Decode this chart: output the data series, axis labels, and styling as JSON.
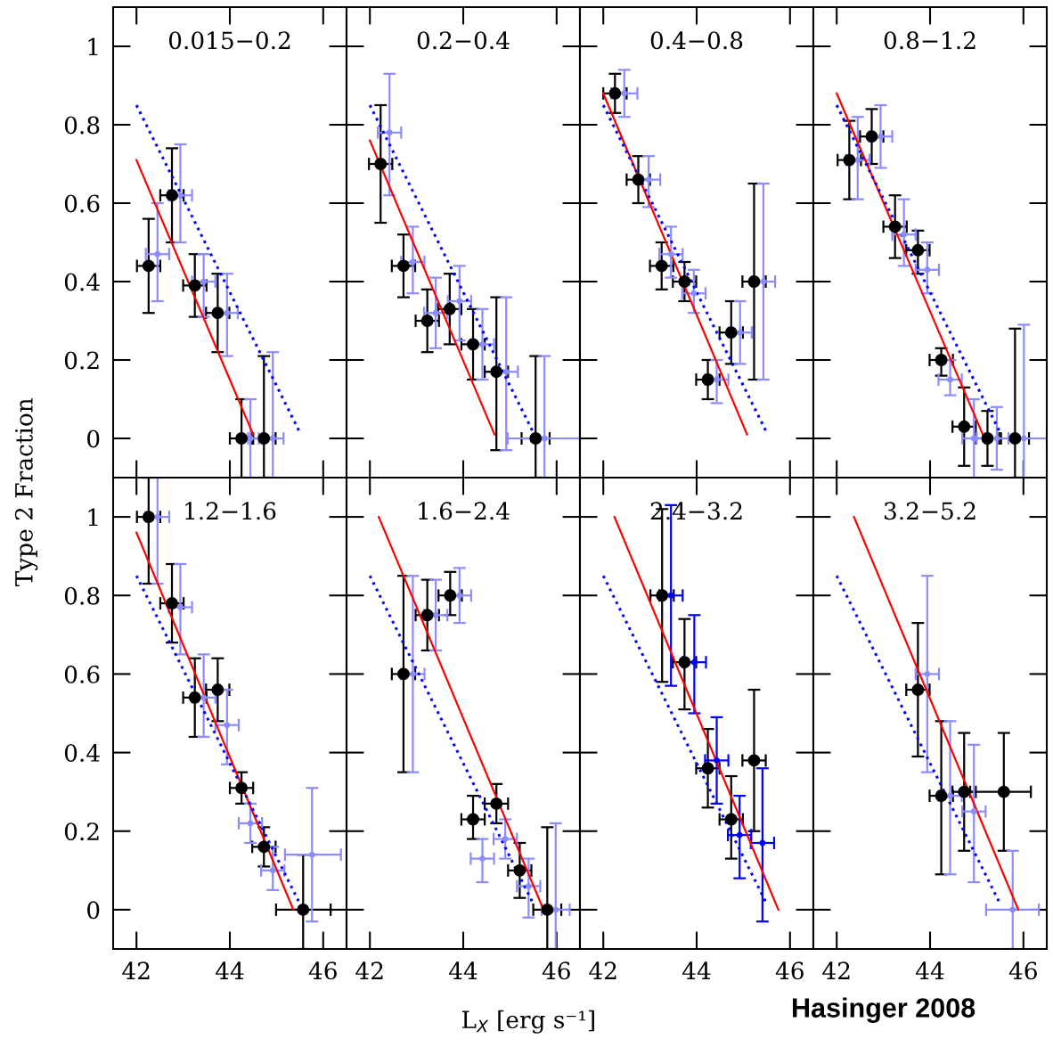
{
  "chart_data": [
    {
      "type": "scatter",
      "title": "0.015−0.2",
      "ylabel": "Type 2 Fraction",
      "xlim": [
        41.5,
        46.5
      ],
      "ylim": [
        -0.1,
        1.1
      ],
      "xticks": [
        42,
        44,
        46
      ],
      "yticks": [
        0,
        0.2,
        0.4,
        0.6,
        0.8,
        1
      ],
      "tick_labels": "y",
      "series": [
        {
          "color": "#8c8cff",
          "marker": "circle",
          "x": [
            42.45,
            42.94,
            43.44,
            43.94,
            44.44,
            44.92
          ],
          "values": [
            0.47,
            0.62,
            0.4,
            0.32,
            0,
            0
          ],
          "errors": [
            [
              0.35,
              0.6
            ],
            [
              0.5,
              0.75
            ],
            [
              0.31,
              0.47
            ],
            [
              0.21,
              0.42
            ],
            [
              -0.1,
              0.1
            ],
            [
              -0.1,
              0.22
            ]
          ],
          "xerrors": [
            0.25,
            0.25,
            0.25,
            0.23,
            [
              44.39,
              44.62
            ],
            0.23
          ]
        },
        {
          "color": "#000000",
          "marker": "circle",
          "x": [
            42.26,
            42.76,
            43.25,
            43.74,
            44.25,
            44.73
          ],
          "values": [
            0.44,
            0.62,
            0.39,
            0.32,
            0,
            0
          ],
          "errors": [
            [
              0.32,
              0.56
            ],
            [
              0.5,
              0.74
            ],
            [
              0.31,
              0.47
            ],
            [
              0.22,
              0.42
            ],
            [
              -0.1,
              0.1
            ],
            [
              -0.1,
              0.21
            ]
          ],
          "xerrors": [
            0.25,
            0.25,
            0.25,
            0.25,
            0.25,
            0.25
          ]
        },
        {
          "type": "line",
          "color": "#ff0000",
          "x": [
            42,
            44.5
          ],
          "values": [
            0.71,
            0.01
          ]
        },
        {
          "type": "line",
          "color": "#0000ff",
          "line_style": "dotted",
          "x": [
            42,
            45.48
          ],
          "values": [
            0.85,
            0.02
          ]
        }
      ]
    },
    {
      "type": "scatter",
      "title": "0.2−0.4",
      "xlim": [
        41.5,
        46.5
      ],
      "ylim": [
        -0.1,
        1.1
      ],
      "xticks": [
        42,
        44,
        46
      ],
      "yticks": [
        0,
        0.2,
        0.4,
        0.6,
        0.8,
        1
      ],
      "tick_labels": false,
      "series": [
        {
          "color": "#8c8cff",
          "marker": "circle",
          "x": [
            42.42,
            42.92,
            43.41,
            43.92,
            44.41,
            44.92,
            45.74
          ],
          "values": [
            0.78,
            0.45,
            0.32,
            0.35,
            0.24,
            0.17,
            0
          ],
          "errors": [
            [
              0.62,
              0.93
            ],
            [
              0.37,
              0.54
            ],
            [
              0.23,
              0.41
            ],
            [
              0.25,
              0.44
            ],
            [
              0.15,
              0.33
            ],
            [
              -0.03,
              0.36
            ],
            [
              -0.1,
              0.21
            ]
          ],
          "xerrors": [
            0.25,
            0.25,
            0.25,
            0.25,
            0.25,
            0.25,
            [
              44.95,
              46.5
            ]
          ]
        },
        {
          "color": "#000000",
          "marker": "circle",
          "x": [
            42.23,
            42.72,
            43.23,
            43.71,
            44.21,
            44.71,
            45.55
          ],
          "values": [
            0.7,
            0.44,
            0.3,
            0.33,
            0.24,
            0.17,
            0
          ],
          "errors": [
            [
              0.55,
              0.85
            ],
            [
              0.36,
              0.52
            ],
            [
              0.22,
              0.38
            ],
            [
              0.24,
              0.42
            ],
            [
              0.15,
              0.33
            ],
            [
              -0.03,
              0.36
            ],
            [
              -0.1,
              0.21
            ]
          ],
          "xerrors": [
            0.25,
            0.25,
            0.25,
            0.25,
            0.25,
            0.25,
            0.3
          ]
        },
        {
          "type": "line",
          "color": "#ff0000",
          "x": [
            42,
            44.67
          ],
          "values": [
            0.76,
            0.01
          ]
        },
        {
          "type": "line",
          "color": "#0000ff",
          "line_style": "dotted",
          "x": [
            42,
            45.48
          ],
          "values": [
            0.85,
            0.02
          ]
        }
      ]
    },
    {
      "type": "scatter",
      "title": "0.4−0.8",
      "xlim": [
        41.5,
        46.5
      ],
      "ylim": [
        -0.1,
        1.1
      ],
      "xticks": [
        42,
        44,
        46
      ],
      "yticks": [
        0,
        0.2,
        0.4,
        0.6,
        0.8,
        1
      ],
      "tick_labels": false,
      "series": [
        {
          "color": "#8c8cff",
          "marker": "circle",
          "x": [
            42.45,
            42.97,
            43.45,
            43.94,
            44.43,
            44.93,
            45.43
          ],
          "values": [
            0.88,
            0.66,
            0.47,
            0.37,
            0.15,
            0.27,
            0.4
          ],
          "errors": [
            [
              0.82,
              0.94
            ],
            [
              0.59,
              0.72
            ],
            [
              0.41,
              0.54
            ],
            [
              0.32,
              0.43
            ],
            [
              0.09,
              0.2
            ],
            [
              0.19,
              0.35
            ],
            [
              0.15,
              0.65
            ]
          ],
          "xerrors": [
            0.28,
            0.25,
            0.25,
            0.25,
            0.25,
            0.25,
            0.25
          ]
        },
        {
          "color": "#000000",
          "marker": "circle",
          "x": [
            42.25,
            42.75,
            43.25,
            43.74,
            44.24,
            44.74,
            45.23
          ],
          "values": [
            0.88,
            0.66,
            0.44,
            0.4,
            0.15,
            0.27,
            0.4
          ],
          "errors": [
            [
              0.83,
              0.93
            ],
            [
              0.6,
              0.72
            ],
            [
              0.38,
              0.5
            ],
            [
              0.35,
              0.45
            ],
            [
              0.1,
              0.2
            ],
            [
              0.19,
              0.35
            ],
            [
              0.15,
              0.65
            ]
          ],
          "xerrors": [
            0.25,
            0.25,
            0.25,
            0.25,
            0.25,
            0.25,
            0.25
          ]
        },
        {
          "type": "line",
          "color": "#ff0000",
          "x": [
            42,
            45.08
          ],
          "values": [
            0.88,
            0.01
          ]
        },
        {
          "type": "line",
          "color": "#0000ff",
          "line_style": "dotted",
          "x": [
            42,
            45.48
          ],
          "values": [
            0.85,
            0.02
          ]
        }
      ]
    },
    {
      "type": "scatter",
      "title": "0.8−1.2",
      "xlim": [
        41.5,
        46.5
      ],
      "ylim": [
        -0.1,
        1.1
      ],
      "xticks": [
        42,
        44,
        46
      ],
      "yticks": [
        0,
        0.2,
        0.4,
        0.6,
        0.8,
        1
      ],
      "tick_labels": false,
      "series": [
        {
          "color": "#8c8cff",
          "marker": "circle",
          "x": [
            42.45,
            42.94,
            43.44,
            43.94,
            44.43,
            44.94,
            45.43,
            46.01
          ],
          "values": [
            0.71,
            0.77,
            0.52,
            0.43,
            0.15,
            0,
            0,
            0
          ],
          "errors": [
            [
              0.61,
              0.82
            ],
            [
              0.69,
              0.85
            ],
            [
              0.44,
              0.61
            ],
            [
              0.37,
              0.5
            ],
            [
              0.11,
              0.2
            ],
            [
              -0.1,
              0.1
            ],
            [
              -0.08,
              0.08
            ],
            [
              -0.1,
              0.29
            ]
          ],
          "xerrors": [
            0.25,
            0.25,
            0.25,
            0.25,
            0.25,
            0.25,
            0.25,
            [
              45,
              46.5
            ]
          ]
        },
        {
          "color": "#000000",
          "marker": "circle",
          "x": [
            42.27,
            42.75,
            43.25,
            43.74,
            44.24,
            44.73,
            45.23,
            45.82
          ],
          "values": [
            0.71,
            0.77,
            0.54,
            0.48,
            0.2,
            0.03,
            0,
            0
          ],
          "errors": [
            [
              0.61,
              0.81
            ],
            [
              0.7,
              0.84
            ],
            [
              0.46,
              0.62
            ],
            [
              0.42,
              0.53
            ],
            [
              0.16,
              0.23
            ],
            [
              -0.07,
              0.13
            ],
            [
              -0.07,
              0.07
            ],
            [
              -0.1,
              0.28
            ]
          ],
          "xerrors": [
            0.25,
            0.25,
            0.25,
            0.25,
            0.25,
            0.25,
            0.25,
            0.3
          ]
        },
        {
          "type": "line",
          "color": "#ff0000",
          "x": [
            42,
            45.13
          ],
          "values": [
            0.88,
            0.01
          ]
        },
        {
          "type": "line",
          "color": "#0000ff",
          "line_style": "dotted",
          "x": [
            42,
            45.48
          ],
          "values": [
            0.85,
            0.02
          ]
        }
      ]
    },
    {
      "type": "scatter",
      "title": "1.2−1.6",
      "xlim": [
        41.5,
        46.5
      ],
      "ylim": [
        -0.1,
        1.1
      ],
      "xticks": [
        42,
        44,
        46
      ],
      "yticks": [
        0,
        0.2,
        0.4,
        0.6,
        0.8,
        1
      ],
      "series": [
        {
          "color": "#8c8cff",
          "marker": "circle",
          "x": [
            42.45,
            42.94,
            43.44,
            43.94,
            44.44,
            44.92,
            45.76
          ],
          "values": [
            1,
            0.77,
            0.54,
            0.47,
            0.22,
            0.1,
            0.14
          ],
          "errors": [
            [
              0.83,
              1.1
            ],
            [
              0.65,
              0.88
            ],
            [
              0.44,
              0.65
            ],
            [
              0.37,
              0.56
            ],
            [
              0.17,
              0.27
            ],
            [
              0.05,
              0.16
            ],
            [
              -0.03,
              0.31
            ]
          ],
          "xerrors": [
            0.25,
            0.25,
            0.25,
            0.25,
            0.25,
            0.25,
            [
              45.18,
              46.38
            ]
          ]
        },
        {
          "color": "#000000",
          "marker": "circle",
          "x": [
            42.26,
            42.76,
            43.25,
            43.74,
            44.25,
            44.73,
            45.57
          ],
          "values": [
            1,
            0.78,
            0.54,
            0.56,
            0.31,
            0.16,
            0
          ],
          "errors": [
            [
              0.83,
              1.1
            ],
            [
              0.68,
              0.88
            ],
            [
              0.44,
              0.64
            ],
            [
              0.48,
              0.64
            ],
            [
              0.27,
              0.35
            ],
            [
              0.11,
              0.21
            ],
            [
              -0.1,
              0.14
            ]
          ],
          "xerrors": [
            0.25,
            0.25,
            0.25,
            0.25,
            0.25,
            0.25,
            [
              44.99,
              46.16
            ]
          ]
        },
        {
          "type": "line",
          "color": "#ff0000",
          "x": [
            42,
            45.36
          ],
          "values": [
            0.96,
            0
          ]
        },
        {
          "type": "line",
          "color": "#0000ff",
          "line_style": "dotted",
          "x": [
            42,
            45.48
          ],
          "values": [
            0.85,
            0.02
          ]
        }
      ]
    },
    {
      "type": "scatter",
      "title": "1.6−2.4",
      "xlabel": "L$_{X}$ [erg s⁻¹]",
      "xlim": [
        41.5,
        46.5
      ],
      "ylim": [
        -0.1,
        1.1
      ],
      "xticks": [
        42,
        44,
        46
      ],
      "yticks": [
        0,
        0.2,
        0.4,
        0.6,
        0.8,
        1
      ],
      "tick_labels": "x",
      "series": [
        {
          "color": "#8c8cff",
          "marker": "circle",
          "x": [
            42.92,
            43.41,
            43.92,
            44.41,
            44.9,
            45.4,
            45.98
          ],
          "values": [
            0.6,
            0.75,
            0.8,
            0.13,
            0.18,
            0.06,
            0
          ],
          "errors": [
            [
              0.35,
              0.85
            ],
            [
              0.66,
              0.84
            ],
            [
              0.73,
              0.87
            ],
            [
              0.07,
              0.18
            ],
            [
              0.13,
              0.23
            ],
            [
              -0.02,
              0.13
            ],
            [
              -0.1,
              0.22
            ]
          ],
          "xerrors": [
            0.25,
            0.25,
            0.25,
            0.25,
            0.25,
            0.25,
            0.3
          ]
        },
        {
          "color": "#000000",
          "marker": "circle",
          "x": [
            42.72,
            43.23,
            43.72,
            44.21,
            44.71,
            45.21,
            45.8
          ],
          "values": [
            0.6,
            0.75,
            0.8,
            0.23,
            0.27,
            0.1,
            0
          ],
          "errors": [
            [
              0.35,
              0.85
            ],
            [
              0.66,
              0.84
            ],
            [
              0.75,
              0.86
            ],
            [
              0.18,
              0.29
            ],
            [
              0.22,
              0.32
            ],
            [
              0.03,
              0.17
            ],
            [
              -0.1,
              0.21
            ]
          ],
          "xerrors": [
            0.25,
            0.25,
            0.25,
            0.25,
            0.25,
            0.25,
            0.3
          ]
        },
        {
          "type": "line",
          "color": "#ff0000",
          "x": [
            42.19,
            45.72
          ],
          "values": [
            1,
            0
          ]
        },
        {
          "type": "line",
          "color": "#0000ff",
          "line_style": "dotted",
          "x": [
            42,
            45.48
          ],
          "values": [
            0.85,
            0.02
          ]
        }
      ]
    },
    {
      "type": "scatter",
      "title": "2.4−3.2",
      "xlim": [
        41.5,
        46.5
      ],
      "ylim": [
        -0.1,
        1.1
      ],
      "xticks": [
        42,
        44,
        46
      ],
      "yticks": [
        0,
        0.2,
        0.4,
        0.6,
        0.8,
        1
      ],
      "tick_labels": "x",
      "series": [
        {
          "color": "#0000ff",
          "marker": "circle",
          "x": [
            43.45,
            43.95,
            44.43,
            44.92,
            45.41
          ],
          "values": [
            0.8,
            0.63,
            0.38,
            0.19,
            0.17
          ],
          "errors": [
            [
              0.57,
              1.03
            ],
            [
              0.5,
              0.75
            ],
            [
              0.27,
              0.49
            ],
            [
              0.08,
              0.29
            ],
            [
              -0.03,
              0.36
            ]
          ],
          "xerrors": [
            0.25,
            0.25,
            0.25,
            0.25,
            0.25
          ]
        },
        {
          "color": "#000000",
          "marker": "circle",
          "x": [
            43.26,
            43.74,
            44.24,
            44.74,
            45.23
          ],
          "values": [
            0.8,
            0.63,
            0.36,
            0.23,
            0.38
          ],
          "errors": [
            [
              0.58,
              1.02
            ],
            [
              0.51,
              0.74
            ],
            [
              0.26,
              0.46
            ],
            [
              0.13,
              0.34
            ],
            [
              0.2,
              0.56
            ]
          ],
          "xerrors": [
            0.25,
            0.25,
            0.25,
            0.25,
            0.25
          ]
        },
        {
          "type": "line",
          "color": "#ff0000",
          "x": [
            42.24,
            45.75
          ],
          "values": [
            1,
            0
          ]
        },
        {
          "type": "line",
          "color": "#0000ff",
          "line_style": "dotted",
          "x": [
            42,
            45.48
          ],
          "values": [
            0.85,
            0.02
          ]
        }
      ]
    },
    {
      "type": "scatter",
      "title": "3.2−5.2",
      "annotations": [
        "Hasinger 2008"
      ],
      "xlim": [
        41.5,
        46.5
      ],
      "ylim": [
        -0.1,
        1.1
      ],
      "xticks": [
        42,
        44,
        46
      ],
      "yticks": [
        0,
        0.2,
        0.4,
        0.6,
        0.8,
        1
      ],
      "tick_labels": "x",
      "series": [
        {
          "color": "#8c8cff",
          "marker": "circle",
          "x": [
            43.94,
            44.43,
            44.94,
            45.77
          ],
          "values": [
            0.6,
            0.29,
            0.25,
            0
          ],
          "errors": [
            [
              0.35,
              0.85
            ],
            [
              0.09,
              0.48
            ],
            [
              0.07,
              0.42
            ],
            [
              -0.1,
              0.15
            ]
          ],
          "xerrors": [
            0.25,
            0.25,
            0.25,
            [
              45.2,
              46.33
            ]
          ]
        },
        {
          "color": "#000000",
          "marker": "circle",
          "x": [
            43.74,
            44.24,
            44.73,
            45.58
          ],
          "values": [
            0.56,
            0.29,
            0.3,
            0.3
          ],
          "errors": [
            [
              0.39,
              0.73
            ],
            [
              0.09,
              0.48
            ],
            [
              0.15,
              0.45
            ],
            [
              0.15,
              0.45
            ]
          ],
          "xerrors": [
            0.25,
            0.25,
            0.25,
            [
              44.86,
              46.16
            ]
          ]
        },
        {
          "type": "line",
          "color": "#ff0000",
          "x": [
            42.37,
            45.89
          ],
          "values": [
            1,
            0
          ]
        },
        {
          "type": "line",
          "color": "#0000ff",
          "line_style": "dotted",
          "x": [
            42,
            45.48
          ],
          "values": [
            0.85,
            0.02
          ]
        }
      ]
    }
  ]
}
